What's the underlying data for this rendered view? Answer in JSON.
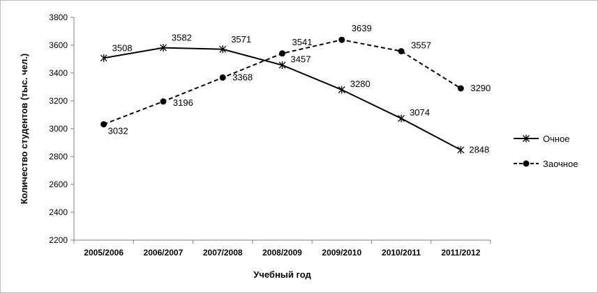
{
  "chart_data": {
    "type": "line",
    "xlabel": "Учебный год",
    "ylabel": "Количество студентов (тыс. чел.)",
    "categories": [
      "2005/2006",
      "2006/2007",
      "2007/2008",
      "2008/2009",
      "2009/2010",
      "2010/2011",
      "2011/2012"
    ],
    "ylim": [
      2200,
      3800
    ],
    "yticks": [
      2200,
      2400,
      2600,
      2800,
      3000,
      3200,
      3400,
      3600,
      3800
    ],
    "grid": false,
    "legend_position": "right",
    "series": [
      {
        "name": "Очное",
        "values": [
          3508,
          3582,
          3571,
          3457,
          3280,
          3074,
          2848
        ],
        "line_style": "solid",
        "marker": "asterisk",
        "color": "#000000"
      },
      {
        "name": "Заочное",
        "values": [
          3032,
          3196,
          3368,
          3541,
          3639,
          3557,
          3290
        ],
        "line_style": "dashed",
        "marker": "circle",
        "color": "#000000"
      }
    ]
  }
}
